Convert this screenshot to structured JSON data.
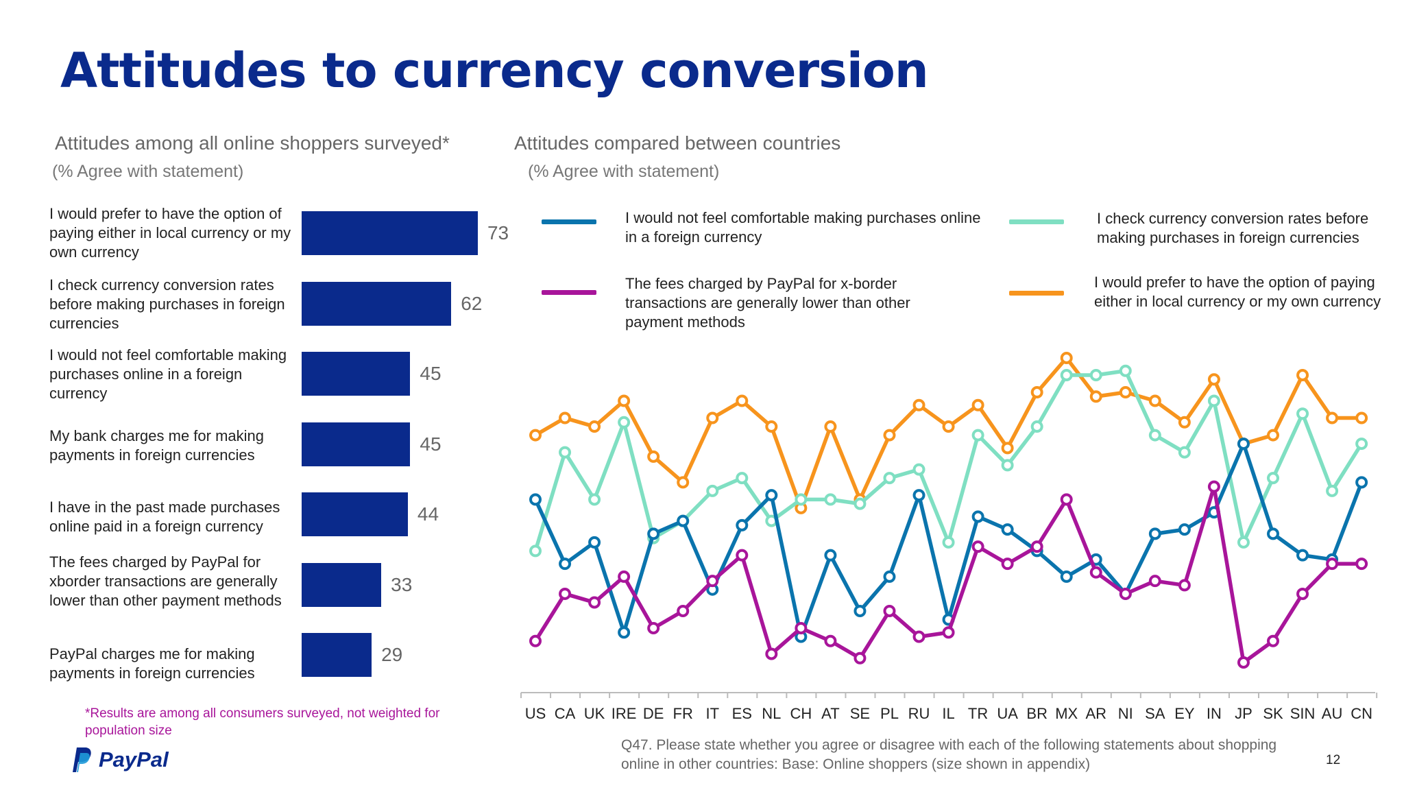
{
  "title": "Attitudes to currency conversion",
  "left": {
    "title": "Attitudes among all online shoppers surveyed*",
    "subtitle": "(% Agree with statement)",
    "bars": [
      {
        "label": "I would prefer to have the option of paying either in local currency or my own currency",
        "value": 73
      },
      {
        "label": "I check currency conversion rates before making purchases in foreign currencies",
        "value": 62
      },
      {
        "label": "I would not feel comfortable making purchases online in a foreign currency",
        "value": 45
      },
      {
        "label": "My bank charges me for making payments in foreign currencies",
        "value": 45
      },
      {
        "label": "I have in the past made purchases online paid in a foreign currency",
        "value": 44
      },
      {
        "label": "The fees charged by PayPal for xborder transactions are generally lower than other payment methods",
        "value": 33
      },
      {
        "label": "PayPal charges me for making payments in foreign currencies",
        "value": 29
      }
    ],
    "footnote": "*Results are among all consumers surveyed, not weighted for population size"
  },
  "right": {
    "title": "Attitudes compared between countries",
    "subtitle": "(% Agree with statement)"
  },
  "colors": {
    "title": "#0a2a8c",
    "bar": "#0a2a8c",
    "footnote": "#a8159a",
    "series_not_comfortable": "#0a74ad",
    "series_fees": "#a8159a",
    "series_check_rates": "#7fdfc2",
    "series_prefer_option": "#f7941d"
  },
  "chart_data": [
    {
      "type": "bar",
      "orientation": "horizontal",
      "title": "Attitudes among all online shoppers surveyed*",
      "subtitle": "(% Agree with statement)",
      "categories": [
        "I would prefer to have the option of paying either in local currency or my own currency",
        "I check currency conversion rates before making purchases in foreign currencies",
        "I would not feel comfortable making purchases online in a foreign currency",
        "My bank charges me for making payments in foreign currencies",
        "I have in the past made purchases online paid in a foreign currency",
        "The fees charged by PayPal for xborder transactions are generally lower than other payment methods",
        "PayPal charges me for making payments in foreign currencies"
      ],
      "values": [
        73,
        62,
        45,
        45,
        44,
        33,
        29
      ],
      "xlim": [
        0,
        100
      ]
    },
    {
      "type": "line",
      "title": "Attitudes compared between countries",
      "subtitle": "(% Agree with statement)",
      "x": [
        "US",
        "CA",
        "UK",
        "IRE",
        "DE",
        "FR",
        "IT",
        "ES",
        "NL",
        "CH",
        "AT",
        "SE",
        "PL",
        "RU",
        "IL",
        "TR",
        "UA",
        "BR",
        "MX",
        "AR",
        "NI",
        "SA",
        "EY",
        "IN",
        "JP",
        "SK",
        "SIN",
        "AU",
        "CN"
      ],
      "ylim": [
        0,
        100
      ],
      "grid": false,
      "legend_position": "top",
      "series": [
        {
          "name": "I would not feel comfortable making purchases online in a foreign currency",
          "color": "#0a74ad",
          "values": [
            45,
            30,
            35,
            14,
            37,
            40,
            24,
            39,
            46,
            13,
            32,
            19,
            27,
            46,
            17,
            41,
            38,
            33,
            27,
            31,
            23,
            37,
            38,
            42,
            58,
            37,
            32,
            31,
            49
          ]
        },
        {
          "name": "The fees charged by PayPal for x-border transactions are generally lower than other payment methods",
          "color": "#a8159a",
          "values": [
            12,
            23,
            21,
            27,
            15,
            19,
            26,
            32,
            9,
            15,
            12,
            8,
            19,
            13,
            14,
            34,
            30,
            34,
            45,
            28,
            23,
            26,
            25,
            48,
            7,
            12,
            23,
            30,
            30
          ]
        },
        {
          "name": "I check currency conversion rates before making purchases in foreign currencies",
          "color": "#7fdfc2",
          "values": [
            33,
            56,
            45,
            63,
            36,
            40,
            47,
            50,
            40,
            45,
            45,
            44,
            50,
            52,
            35,
            60,
            53,
            62,
            74,
            74,
            75,
            60,
            56,
            68,
            35,
            50,
            65,
            47,
            58
          ]
        },
        {
          "name": "I would prefer to have the option of paying either in local currency or my own currency",
          "color": "#f7941d",
          "values": [
            60,
            64,
            62,
            68,
            55,
            49,
            64,
            68,
            62,
            43,
            62,
            45,
            60,
            67,
            62,
            67,
            57,
            70,
            78,
            69,
            70,
            68,
            63,
            73,
            58,
            60,
            74,
            64,
            64
          ]
        }
      ]
    }
  ]
}
